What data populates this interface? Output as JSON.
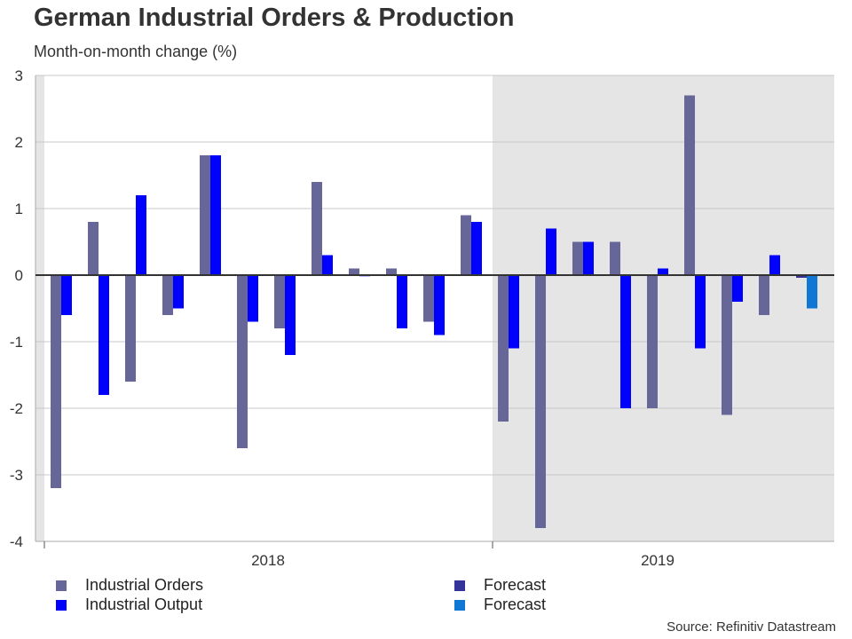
{
  "title": "German Industrial Orders & Production",
  "subtitle": "Month-on-month change (%)",
  "source": "Source: Refinitiv Datastream",
  "colors": {
    "orders": "#666699",
    "output": "#0000ff",
    "forecast_orders": "#333399",
    "forecast_output": "#1177d4",
    "shade": "#e5e5e5"
  },
  "chart_data": {
    "type": "bar",
    "title": "German Industrial Orders & Production",
    "ylabel": "Month-on-month change (%)",
    "ylim": [
      -4,
      3
    ],
    "yticks": [
      "3",
      "2",
      "1",
      "0",
      "-1",
      "-2",
      "-3",
      "-4"
    ],
    "year_labels": [
      "2018",
      "2019"
    ],
    "categories": [
      "2018-01",
      "2018-02",
      "2018-03",
      "2018-04",
      "2018-05",
      "2018-06",
      "2018-07",
      "2018-08",
      "2018-09",
      "2018-10",
      "2018-11",
      "2018-12",
      "2019-01",
      "2019-02",
      "2019-03",
      "2019-04",
      "2019-05",
      "2019-06",
      "2019-07",
      "2019-08",
      "2019-09"
    ],
    "series": [
      {
        "name": "Industrial Orders",
        "values": [
          -3.2,
          0.8,
          -1.6,
          -0.6,
          1.8,
          -2.6,
          -0.8,
          1.4,
          0.1,
          0.1,
          -0.7,
          0.9,
          -2.2,
          -3.8,
          0.5,
          0.5,
          -2.0,
          2.7,
          -2.1,
          -0.6,
          -0.04
        ]
      },
      {
        "name": "Industrial Output",
        "values": [
          -0.6,
          -1.8,
          1.2,
          -0.5,
          1.8,
          -0.7,
          -1.2,
          0.3,
          0.01,
          -0.8,
          -0.9,
          0.8,
          -1.1,
          0.7,
          0.5,
          -2.0,
          0.1,
          -1.1,
          -0.4,
          0.3,
          -0.5
        ]
      }
    ],
    "forecast_index": 20,
    "legend": [
      "Industrial Orders",
      "Industrial Output",
      "Forecast",
      "Forecast"
    ],
    "legend_placement": "bottom"
  }
}
